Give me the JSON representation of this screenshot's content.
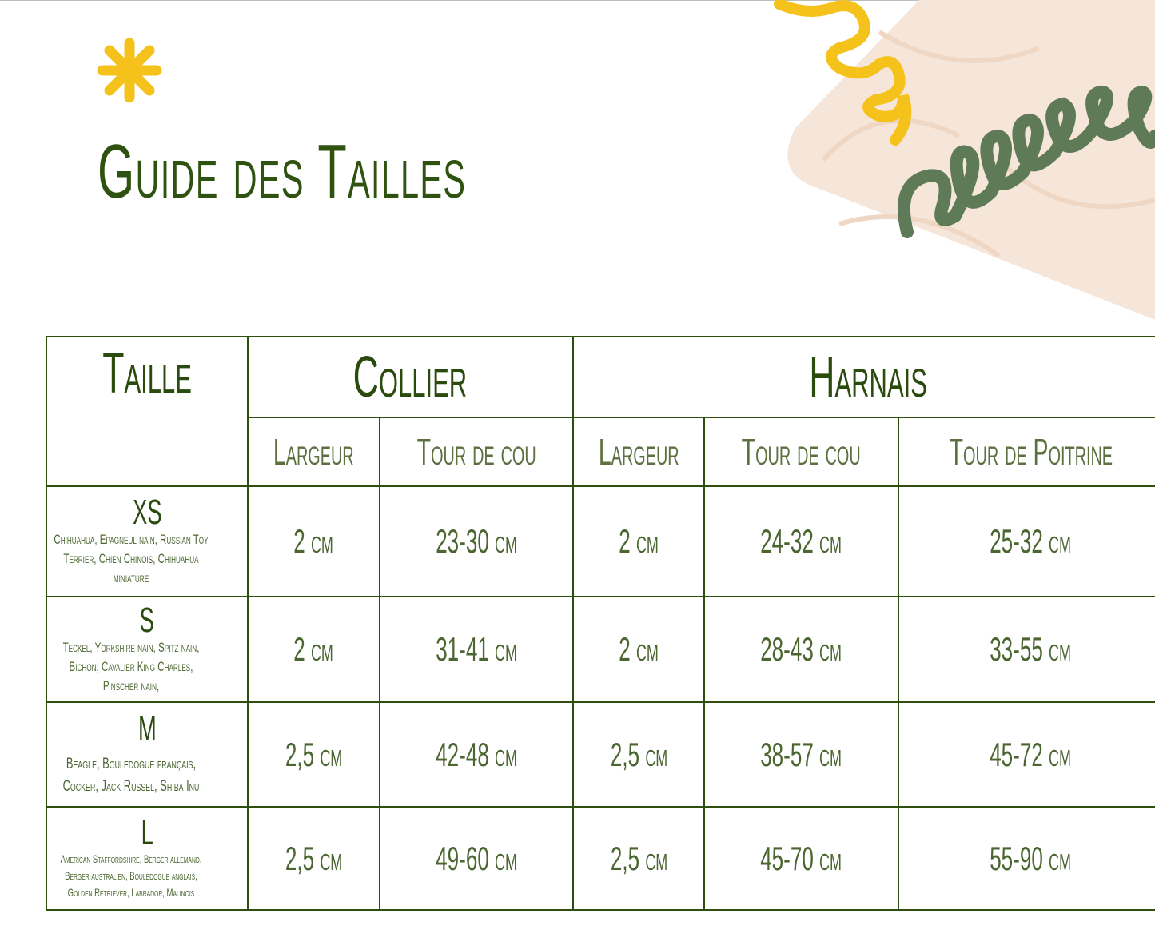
{
  "title": "Guide des Tailles",
  "colors": {
    "dark_green": "#2f5211",
    "accent_yellow": "#f5c21b",
    "peach": "#f6e6d9",
    "spiral_green": "#5f7a57"
  },
  "decorations": [
    "asterisk-icon",
    "yellow-spiral",
    "green-spiral",
    "peach-shape"
  ],
  "table": {
    "headers": {
      "taille": "Taille",
      "collier": "Collier",
      "harnais": "Harnais"
    },
    "subheaders": [
      "Largeur",
      "Tour de cou",
      "Largeur",
      "Tour de cou",
      "Tour de Poitrine"
    ],
    "rows": [
      {
        "size": "XS",
        "breeds": "Chihuahua, Epagneul nain, Russian Toy Terrier, Chien Chinois, Chihuahua miniature",
        "values": [
          "2 cm",
          "23-30 cm",
          "2 cm",
          "24-32 cm",
          "25-32 cm"
        ]
      },
      {
        "size": "S",
        "breeds": "Teckel, Yorkshire nain, Spitz nain, Bichon, Cavalier King Charles, Pinscher nain,",
        "values": [
          "2 cm",
          "31-41 cm",
          "2 cm",
          "28-43 cm",
          "33-55 cm"
        ]
      },
      {
        "size": "M",
        "breeds": "Beagle, Bouledogue français, Cocker, Jack Russel, Shiba Inu",
        "values": [
          "2,5 cm",
          "42-48 cm",
          "2,5 cm",
          "38-57 cm",
          "45-72 cm"
        ]
      },
      {
        "size": "L",
        "breeds": "American Staffordshire, Berger allemand, Berger australien, Bouledogue anglais, Golden Retriever, Labrador, Malinois",
        "values": [
          "2,5 cm",
          "49-60 cm",
          "2,5 cm",
          "45-70 cm",
          "55-90 cm"
        ]
      }
    ]
  }
}
